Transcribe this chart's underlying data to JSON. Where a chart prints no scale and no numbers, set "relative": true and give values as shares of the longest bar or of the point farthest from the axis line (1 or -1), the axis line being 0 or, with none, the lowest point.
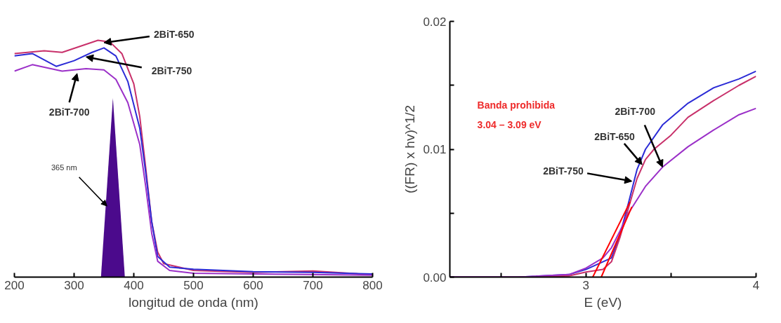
{
  "chart_data": [
    {
      "type": "line",
      "relative": true,
      "xlabel": "longitud de onda (nm)",
      "xlim": [
        200,
        800
      ],
      "xticks": [
        200,
        300,
        400,
        500,
        600,
        700,
        800
      ],
      "tick_labels": "x",
      "grid": false,
      "marker": "none",
      "line_style": "solid",
      "series": [
        {
          "color": "#c8306a",
          "x": [
            200,
            250,
            280,
            300,
            340,
            360,
            380,
            400,
            410,
            420,
            430,
            440,
            450,
            500,
            600,
            700,
            800
          ],
          "values": [
            0.944,
            0.956,
            0.949,
            0.966,
            1.0,
            0.993,
            0.944,
            0.816,
            0.678,
            0.461,
            0.234,
            0.106,
            0.057,
            0.028,
            0.02,
            0.026,
            0.01
          ]
        },
        {
          "color": "#2b2bd6",
          "x": [
            200,
            230,
            270,
            300,
            330,
            350,
            370,
            390,
            410,
            420,
            430,
            440,
            460,
            500,
            600,
            700,
            800
          ],
          "values": [
            0.934,
            0.944,
            0.89,
            0.914,
            0.949,
            0.968,
            0.934,
            0.826,
            0.629,
            0.441,
            0.234,
            0.087,
            0.042,
            0.033,
            0.023,
            0.02,
            0.013
          ]
        },
        {
          "color": "#9b30c8",
          "x": [
            200,
            230,
            280,
            320,
            350,
            370,
            390,
            410,
            420,
            430,
            440,
            460,
            500,
            600,
            800
          ],
          "values": [
            0.87,
            0.897,
            0.87,
            0.88,
            0.875,
            0.835,
            0.737,
            0.56,
            0.382,
            0.185,
            0.067,
            0.028,
            0.016,
            0.013,
            0.008
          ]
        },
        {
          "type": "area",
          "color": "#4b0a8c",
          "x": [
            345,
            365,
            385
          ],
          "values": [
            0,
            0.757,
            0
          ]
        }
      ],
      "annotations": [
        {
          "text": "2BiT-650",
          "x": 350,
          "y": 0.99
        },
        {
          "text": "2BiT-750",
          "x": 320,
          "y": 0.93
        },
        {
          "text": "2BiT-700",
          "x": 305,
          "y": 0.86
        },
        {
          "text": "365 nm",
          "x": 355,
          "y": 0.3
        }
      ]
    },
    {
      "type": "line",
      "xlabel": "E (eV)",
      "ylabel": "((FR) x hv)^1/2",
      "xlim": [
        2.2,
        4
      ],
      "ylim": [
        0,
        0.02
      ],
      "xticks": [
        {
          "value": 2.5,
          "label": null
        },
        3,
        {
          "value": 3.5,
          "label": null
        },
        4
      ],
      "yticks": [
        {
          "value": 0,
          "label": "0.00"
        },
        {
          "value": 0.005,
          "label": null
        },
        {
          "value": 0.01,
          "label": "0.01"
        },
        {
          "value": 0.015,
          "label": null
        },
        {
          "value": 0.02,
          "label": "0.02"
        }
      ],
      "grid": false,
      "marker": "none",
      "line_style": "solid",
      "series": [
        {
          "color": "#2b2bd6",
          "x": [
            2.2,
            2.6,
            2.9,
            3.0,
            3.1,
            3.15,
            3.2,
            3.25,
            3.3,
            3.35,
            3.45,
            3.6,
            3.75,
            3.9,
            4.0
          ],
          "values": [
            0,
            0,
            0.0002,
            0.0006,
            0.0012,
            0.0015,
            0.0033,
            0.0058,
            0.0084,
            0.01,
            0.0119,
            0.0136,
            0.0148,
            0.0155,
            0.0161
          ]
        },
        {
          "color": "#c8306a",
          "x": [
            2.2,
            2.6,
            2.9,
            3.0,
            3.1,
            3.15,
            3.2,
            3.25,
            3.3,
            3.35,
            3.4,
            3.5,
            3.6,
            3.75,
            3.9,
            4.0
          ],
          "values": [
            0,
            0,
            0.0001,
            0.0004,
            0.0006,
            0.0012,
            0.0031,
            0.0054,
            0.0077,
            0.0092,
            0.01,
            0.0111,
            0.0125,
            0.0138,
            0.015,
            0.0157
          ]
        },
        {
          "color": "#9b30c8",
          "x": [
            2.2,
            2.6,
            2.9,
            3.0,
            3.1,
            3.15,
            3.2,
            3.25,
            3.35,
            3.45,
            3.6,
            3.75,
            3.9,
            4.0
          ],
          "values": [
            0,
            0,
            0.0002,
            0.0007,
            0.0015,
            0.0023,
            0.0036,
            0.005,
            0.0071,
            0.0086,
            0.0102,
            0.0115,
            0.0127,
            0.0132
          ]
        },
        {
          "color": "#ff0000",
          "x": [
            3.04,
            3.26
          ],
          "values": [
            0,
            0.0059
          ]
        },
        {
          "color": "#ff0000",
          "x": [
            3.09,
            3.27
          ],
          "values": [
            0,
            0.0055
          ]
        }
      ],
      "annotations": [
        "Banda prohibida",
        "3.04 – 3.09 eV",
        {
          "text": "2BiT-700",
          "x": 3.45,
          "y": 0.0086
        },
        {
          "text": "2BiT-650",
          "x": 3.33,
          "y": 0.0088
        },
        {
          "text": "2BiT-750",
          "x": 3.27,
          "y": 0.0075
        }
      ]
    }
  ]
}
